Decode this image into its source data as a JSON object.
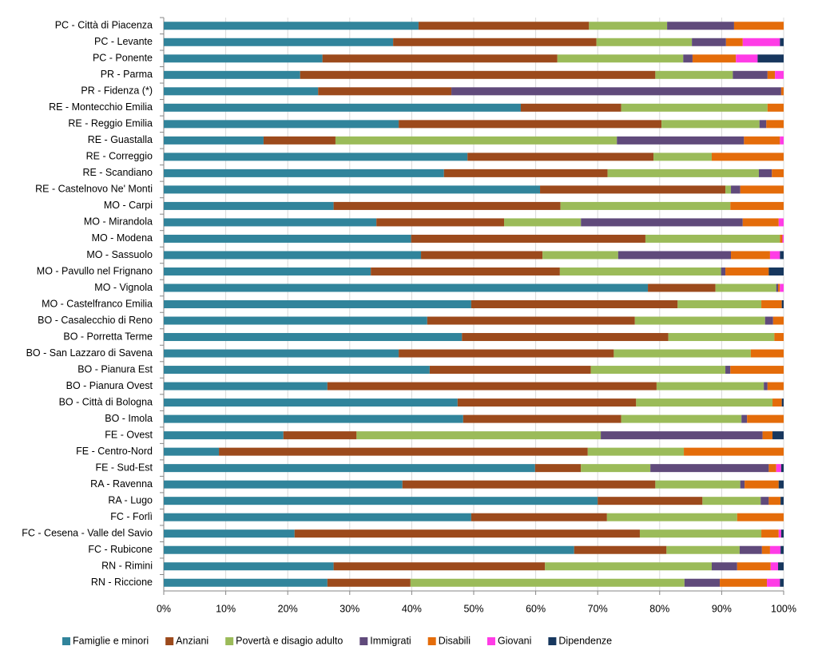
{
  "chart_data": {
    "type": "stacked-bar-horizontal",
    "categories": [
      "PC - Città di Piacenza",
      "PC - Levante",
      "PC - Ponente",
      "PR - Parma",
      "PR - Fidenza (*)",
      "RE - Montecchio Emilia",
      "RE - Reggio Emilia",
      "RE - Guastalla",
      "RE - Correggio",
      "RE - Scandiano",
      "RE - Castelnovo Ne' Monti",
      "MO - Carpi",
      "MO - Mirandola",
      "MO - Modena",
      "MO - Sassuolo",
      "MO - Pavullo nel Frignano",
      "MO - Vignola",
      "MO - Castelfranco Emilia",
      "BO - Casalecchio di Reno",
      "BO - Porretta Terme",
      "BO - San Lazzaro di Savena",
      "BO - Pianura Est",
      "BO - Pianura Ovest",
      "BO - Città di Bologna",
      "BO - Imola",
      "FE - Ovest",
      "FE - Centro-Nord",
      "FE - Sud-Est",
      "RA - Ravenna",
      "RA - Lugo",
      "FC - Forlì",
      "FC - Cesena - Valle del Savio",
      "FC - Rubicone",
      "RN - Rimini",
      "RN - Riccione"
    ],
    "series": [
      {
        "name": "Famiglie e minori",
        "color": "#31849b",
        "values": [
          41.1,
          37,
          25.6,
          22,
          24.9,
          57.6,
          37.9,
          16.1,
          49,
          45.2,
          60.7,
          27.4,
          34.3,
          39.9,
          41.5,
          33.4,
          78.1,
          49.6,
          42.5,
          48.1,
          37.9,
          42.9,
          26.4,
          47.4,
          48.3,
          19.3,
          8.9,
          59.9,
          38.5,
          70,
          49.6,
          21.1,
          66.2,
          27.4,
          26.4
        ]
      },
      {
        "name": "Anziani",
        "color": "#9c4a1c",
        "values": [
          27.5,
          32.8,
          37.9,
          57.3,
          21.5,
          16.2,
          42.4,
          11.6,
          30,
          26.4,
          29.9,
          36.6,
          20.6,
          37.8,
          19.6,
          30.5,
          10.9,
          33.3,
          33.5,
          33.3,
          34.7,
          26,
          53.1,
          28.8,
          25.5,
          11.8,
          59.5,
          7.4,
          40.8,
          16.9,
          21.9,
          55.7,
          14.9,
          34.1,
          13.4
        ]
      },
      {
        "name": "Povertà e disagio adulto",
        "color": "#9bbb59",
        "values": [
          12.6,
          15.4,
          20.3,
          12.5,
          0,
          23.6,
          15.8,
          45.4,
          9.4,
          24.4,
          0.9,
          27.4,
          12.4,
          21.7,
          12.2,
          26,
          9.8,
          13.5,
          21,
          17.1,
          22.1,
          21.7,
          17.3,
          22,
          19.4,
          39.4,
          15.5,
          11.2,
          13.7,
          9.4,
          21,
          19.6,
          11.8,
          26.9,
          44.2
        ]
      },
      {
        "name": "Immigrati",
        "color": "#604a7b",
        "values": [
          10.8,
          5.5,
          1.5,
          5.6,
          53.2,
          0,
          1.1,
          20.5,
          0,
          2.1,
          1.5,
          0,
          26.1,
          0,
          18.2,
          0.7,
          0.3,
          0,
          1.3,
          0,
          0,
          0.8,
          0.6,
          0,
          0.9,
          26.1,
          0,
          19.1,
          0.7,
          1.3,
          0,
          0,
          3.6,
          4.1,
          5.7
        ]
      },
      {
        "name": "Disabili",
        "color": "#e46c0a",
        "values": [
          8,
          2.7,
          7,
          1.2,
          0.4,
          2.6,
          2.8,
          5.8,
          11.6,
          1.9,
          7,
          8.6,
          5.8,
          0.4,
          6.3,
          7,
          0.3,
          3.3,
          1.7,
          1.5,
          5.3,
          8.6,
          2.6,
          1.5,
          5.9,
          1.6,
          16.1,
          1.2,
          5.5,
          1.9,
          7.5,
          2.8,
          1.3,
          5.4,
          7.6
        ]
      },
      {
        "name": "Giovani",
        "color": "#ff3ce6",
        "values": [
          0,
          6,
          3.5,
          1.4,
          0,
          0,
          0,
          0.6,
          0,
          0,
          0,
          0,
          0.8,
          0.2,
          1.6,
          0,
          0.6,
          0,
          0,
          0,
          0,
          0,
          0,
          0,
          0,
          0,
          0,
          0.8,
          0,
          0,
          0,
          0.4,
          1.7,
          1.2,
          2.1
        ]
      },
      {
        "name": "Dipendenze",
        "color": "#17375e",
        "values": [
          0,
          0.6,
          4.2,
          0,
          0,
          0,
          0,
          0,
          0,
          0,
          0,
          0,
          0,
          0,
          0.6,
          2.4,
          0,
          0.3,
          0,
          0,
          0,
          0,
          0,
          0.3,
          0,
          1.8,
          0,
          0.4,
          0.8,
          0.5,
          0,
          0.4,
          0.5,
          0.9,
          0.6
        ]
      }
    ],
    "xlim": [
      0,
      100
    ],
    "xticks": [
      {
        "value": 0,
        "label": "0%"
      },
      {
        "value": 10,
        "label": "10%"
      },
      {
        "value": 20,
        "label": "20%"
      },
      {
        "value": 30,
        "label": "30%"
      },
      {
        "value": 40,
        "label": "40%"
      },
      {
        "value": 50,
        "label": "50%"
      },
      {
        "value": 60,
        "label": "60%"
      },
      {
        "value": 70,
        "label": "70%"
      },
      {
        "value": 80,
        "label": "80%"
      },
      {
        "value": 90,
        "label": "90%"
      },
      {
        "value": 100,
        "label": "100%"
      }
    ],
    "grid": true,
    "legend": "bottom"
  }
}
